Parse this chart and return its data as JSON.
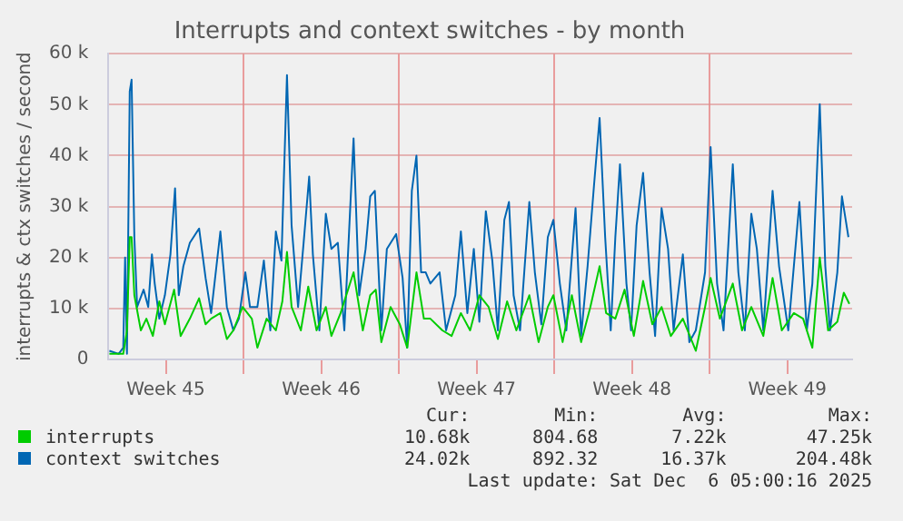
{
  "chart_data": {
    "type": "line",
    "title": "Interrupts and context switches - by month",
    "ylabel": "interrupts & ctx switches / second",
    "xlim": [
      "2025-11-02T22:00",
      "2025-12-06T10:00"
    ],
    "xticks": [
      {
        "value": "2025-11-05T12:00",
        "label": "Week 45"
      },
      {
        "value": "2025-11-09",
        "label": null
      },
      {
        "value": "2025-11-12T12:00",
        "label": "Week 46"
      },
      {
        "value": "2025-11-16",
        "label": null
      },
      {
        "value": "2025-11-19T12:00",
        "label": "Week 47"
      },
      {
        "value": "2025-11-23",
        "label": null
      },
      {
        "value": "2025-11-26T12:00",
        "label": "Week 48"
      },
      {
        "value": "2025-11-30",
        "label": null
      },
      {
        "value": "2025-12-03T12:00",
        "label": "Week 49"
      }
    ],
    "ylim": [
      0,
      60000
    ],
    "yticks": [
      {
        "value": 0,
        "label": "0"
      },
      {
        "value": 10000,
        "label": "10 k"
      },
      {
        "value": 20000,
        "label": "20 k"
      },
      {
        "value": 30000,
        "label": "30 k"
      },
      {
        "value": 40000,
        "label": "40 k"
      },
      {
        "value": 50000,
        "label": "50 k"
      },
      {
        "value": 60000,
        "label": "60 k"
      }
    ],
    "grid": true,
    "legend": "bottom",
    "series": [
      {
        "name": "interrupts",
        "color": "#00cc00",
        "x": [
          "2025-11-02T23:00",
          "2025-11-03T14:00",
          "2025-11-03T18:00",
          "2025-11-03T21:00",
          "2025-11-03T23:00",
          "2025-11-04T02:00",
          "2025-11-04T09:00",
          "2025-11-04T15:00",
          "2025-11-04T22:00",
          "2025-11-05T05:00",
          "2025-11-05T11:00",
          "2025-11-05T21:00",
          "2025-11-06T04:00",
          "2025-11-06T14:00",
          "2025-11-07T00:00",
          "2025-11-07T07:00",
          "2025-11-07T13:00",
          "2025-11-07T23:00",
          "2025-11-08T06:00",
          "2025-11-08T13:00",
          "2025-11-08T23:00",
          "2025-11-09T09:00",
          "2025-11-09T15:00",
          "2025-11-10T01:00",
          "2025-11-10T11:00",
          "2025-11-10T18:00",
          "2025-11-10T23:00",
          "2025-11-11T04:00",
          "2025-11-11T14:00",
          "2025-11-11T22:00",
          "2025-11-12T07:00",
          "2025-11-12T17:00",
          "2025-11-12T23:00",
          "2025-11-13T09:00",
          "2025-11-13T23:00",
          "2025-11-14T09:00",
          "2025-11-14T17:00",
          "2025-11-14T23:00",
          "2025-11-15T05:00",
          "2025-11-15T15:00",
          "2025-11-16T01:00",
          "2025-11-16T09:00",
          "2025-11-16T19:00",
          "2025-11-17T03:00",
          "2025-11-17T10:00",
          "2025-11-17T23:00",
          "2025-11-18T09:00",
          "2025-11-18T19:00",
          "2025-11-19T05:00",
          "2025-11-19T15:00",
          "2025-11-20T01:00",
          "2025-11-20T11:00",
          "2025-11-20T21:00",
          "2025-11-21T07:00",
          "2025-11-21T21:00",
          "2025-11-22T07:00",
          "2025-11-22T17:00",
          "2025-11-22T23:00",
          "2025-11-23T09:00",
          "2025-11-23T19:00",
          "2025-11-24T05:00",
          "2025-11-24T15:00",
          "2025-11-25T01:00",
          "2025-11-25T08:00",
          "2025-11-25T18:00",
          "2025-11-26T04:00",
          "2025-11-26T14:00",
          "2025-11-27T00:00",
          "2025-11-27T10:00",
          "2025-11-27T20:00",
          "2025-11-28T06:00",
          "2025-11-28T19:00",
          "2025-11-29T09:00",
          "2025-11-29T19:00",
          "2025-11-30T01:00",
          "2025-11-30T11:00",
          "2025-12-01T01:00",
          "2025-12-01T11:00",
          "2025-12-01T21:00",
          "2025-12-02T10:00",
          "2025-12-02T20:00",
          "2025-12-03T06:00",
          "2025-12-03T19:00",
          "2025-12-04T05:00",
          "2025-12-04T15:00",
          "2025-12-04T23:00",
          "2025-12-05T08:00",
          "2025-12-05T18:00",
          "2025-12-06T01:00",
          "2025-12-06T07:00"
        ],
        "values": [
          1100,
          1100,
          5700,
          24000,
          24000,
          12600,
          5700,
          8000,
          4600,
          11400,
          6900,
          13700,
          4600,
          8000,
          12000,
          6900,
          8000,
          9100,
          4000,
          5700,
          10300,
          8000,
          2300,
          8000,
          5700,
          11400,
          21100,
          10300,
          5700,
          14300,
          5700,
          10300,
          4600,
          9100,
          17100,
          5700,
          12600,
          13700,
          3400,
          10300,
          6900,
          2300,
          17100,
          8000,
          8000,
          5700,
          4600,
          9100,
          5700,
          12600,
          10300,
          4000,
          11400,
          5700,
          12600,
          3400,
          10300,
          12600,
          3400,
          12600,
          3400,
          10300,
          18300,
          9100,
          8000,
          13700,
          4600,
          15400,
          6900,
          10300,
          4600,
          8000,
          1700,
          10300,
          16000,
          8000,
          14900,
          5700,
          10300,
          4600,
          16000,
          5700,
          9100,
          8000,
          2300,
          20000,
          5700,
          7400,
          13100,
          10900
        ]
      },
      {
        "name": "context switches",
        "color": "#0066b3",
        "x": [
          "2025-11-02T23:00",
          "2025-11-03T09:00",
          "2025-11-03T14:00",
          "2025-11-03T16:00",
          "2025-11-03T18:00",
          "2025-11-03T21:00",
          "2025-11-03T23:00",
          "2025-11-04T02:00",
          "2025-11-04T05:00",
          "2025-11-04T12:00",
          "2025-11-04T17:00",
          "2025-11-04T21:00",
          "2025-11-05T00:00",
          "2025-11-05T05:00",
          "2025-11-05T11:00",
          "2025-11-05T17:00",
          "2025-11-05T22:00",
          "2025-11-06T02:00",
          "2025-11-06T07:00",
          "2025-11-06T14:00",
          "2025-11-07T00:00",
          "2025-11-07T07:00",
          "2025-11-07T13:00",
          "2025-11-07T23:00",
          "2025-11-08T06:00",
          "2025-11-08T13:00",
          "2025-11-08T19:00",
          "2025-11-09T02:00",
          "2025-11-09T07:00",
          "2025-11-09T15:00",
          "2025-11-09T22:00",
          "2025-11-10T05:00",
          "2025-11-10T11:00",
          "2025-11-10T17:00",
          "2025-11-10T23:00",
          "2025-11-11T04:00",
          "2025-11-11T11:00",
          "2025-11-11T17:00",
          "2025-11-11T23:00",
          "2025-11-12T03:00",
          "2025-11-12T10:00",
          "2025-11-12T17:00",
          "2025-11-12T23:00",
          "2025-11-13T06:00",
          "2025-11-13T13:00",
          "2025-11-13T23:00",
          "2025-11-14T05:00",
          "2025-11-14T12:00",
          "2025-11-14T17:00",
          "2025-11-14T22:00",
          "2025-11-15T05:00",
          "2025-11-15T11:00",
          "2025-11-15T21:00",
          "2025-11-16T04:00",
          "2025-11-16T09:00",
          "2025-11-16T14:00",
          "2025-11-16T19:00",
          "2025-11-17T00:00",
          "2025-11-17T05:00",
          "2025-11-17T10:00",
          "2025-11-17T20:00",
          "2025-11-18T03:00",
          "2025-11-18T13:00",
          "2025-11-18T19:00",
          "2025-11-19T02:00",
          "2025-11-19T09:00",
          "2025-11-19T15:00",
          "2025-11-19T22:00",
          "2025-11-20T05:00",
          "2025-11-20T11:00",
          "2025-11-20T18:00",
          "2025-11-20T23:00",
          "2025-11-21T04:00",
          "2025-11-21T11:00",
          "2025-11-21T21:00",
          "2025-11-22T03:00",
          "2025-11-22T10:00",
          "2025-11-22T17:00",
          "2025-11-22T23:00",
          "2025-11-23T06:00",
          "2025-11-23T13:00",
          "2025-11-23T23:00",
          "2025-11-24T05:00",
          "2025-11-24T12:00",
          "2025-11-24T19:00",
          "2025-11-25T01:00",
          "2025-11-25T07:00",
          "2025-11-25T13:00",
          "2025-11-25T18:00",
          "2025-11-25T23:00",
          "2025-11-26T06:00",
          "2025-11-26T11:00",
          "2025-11-26T17:00",
          "2025-11-27T00:00",
          "2025-11-27T07:00",
          "2025-11-27T13:00",
          "2025-11-27T20:00",
          "2025-11-28T03:00",
          "2025-11-28T09:00",
          "2025-11-28T19:00",
          "2025-11-29T02:00",
          "2025-11-29T09:00",
          "2025-11-29T19:00",
          "2025-11-30T01:00",
          "2025-11-30T08:00",
          "2025-11-30T15:00",
          "2025-12-01T01:00",
          "2025-12-01T07:00",
          "2025-12-01T14:00",
          "2025-12-01T21:00",
          "2025-12-02T03:00",
          "2025-12-02T10:00",
          "2025-12-02T20:00",
          "2025-12-03T03:00",
          "2025-12-03T13:00",
          "2025-12-04T01:00",
          "2025-12-04T09:00",
          "2025-12-04T15:00",
          "2025-12-04T23:00",
          "2025-12-05T05:00",
          "2025-12-05T10:00",
          "2025-12-05T18:00",
          "2025-12-05T23:00",
          "2025-12-06T06:00"
        ],
        "values": [
          1700,
          1100,
          2300,
          20000,
          1100,
          52600,
          54900,
          24000,
          10300,
          13700,
          10300,
          20600,
          14900,
          8000,
          12600,
          20600,
          33600,
          12600,
          18300,
          22900,
          25700,
          16000,
          9100,
          25100,
          10300,
          5700,
          8000,
          17100,
          10300,
          10300,
          19400,
          5700,
          25100,
          19400,
          55800,
          26300,
          10300,
          22900,
          35900,
          20600,
          5700,
          28600,
          21700,
          22900,
          5700,
          43400,
          12600,
          21700,
          32000,
          33100,
          5700,
          21700,
          24600,
          16000,
          2300,
          33100,
          40000,
          17100,
          17100,
          14900,
          17100,
          5700,
          12600,
          25100,
          9100,
          21700,
          7400,
          29100,
          19400,
          5700,
          27400,
          30900,
          12600,
          5700,
          30900,
          17100,
          6900,
          24000,
          27400,
          14900,
          5700,
          29700,
          4600,
          18300,
          34300,
          47400,
          24000,
          5700,
          24000,
          38300,
          14900,
          5700,
          26300,
          36600,
          17100,
          4600,
          29700,
          21700,
          5700,
          20600,
          3400,
          5700,
          17100,
          41700,
          14900,
          5700,
          38300,
          17100,
          5700,
          28600,
          21700,
          5700,
          33100,
          18300,
          5700,
          30900,
          5700,
          14900,
          50100,
          18300,
          5700,
          17100,
          32000,
          24000
        ]
      }
    ],
    "annotations": [
      "Cur:",
      "Min:",
      "Avg:",
      "Max:",
      "10.68k",
      "804.68",
      "7.22k",
      "47.25k",
      "24.02k",
      "892.32",
      "16.37k",
      "204.48k",
      "Last update: Sat Dec  6 05:00:16 2025"
    ]
  }
}
